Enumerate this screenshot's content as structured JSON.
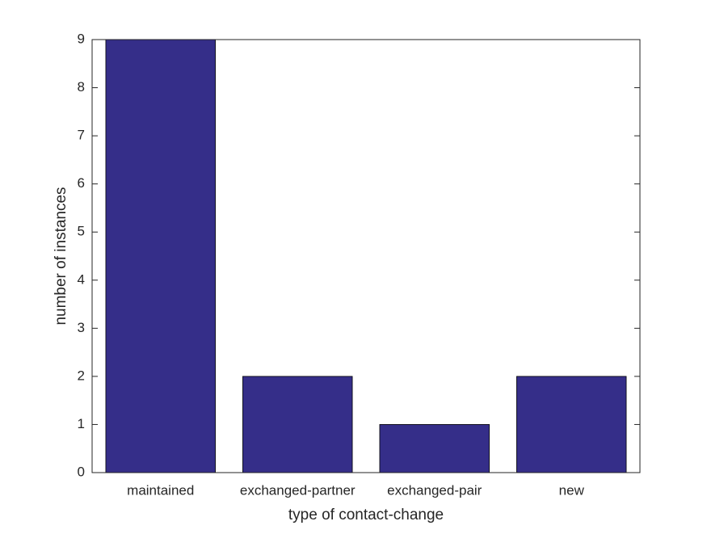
{
  "chart_data": {
    "type": "bar",
    "xlabel": "type of contact-change",
    "ylabel": "number of instances",
    "categories": [
      "maintained",
      "exchanged-partner",
      "exchanged-pair",
      "new"
    ],
    "values": [
      9,
      2,
      1,
      2
    ],
    "color": "#352e89",
    "ylim": [
      0,
      9
    ],
    "yticks": [
      0,
      1,
      2,
      3,
      4,
      5,
      6,
      7,
      8,
      9
    ],
    "grid": false
  }
}
